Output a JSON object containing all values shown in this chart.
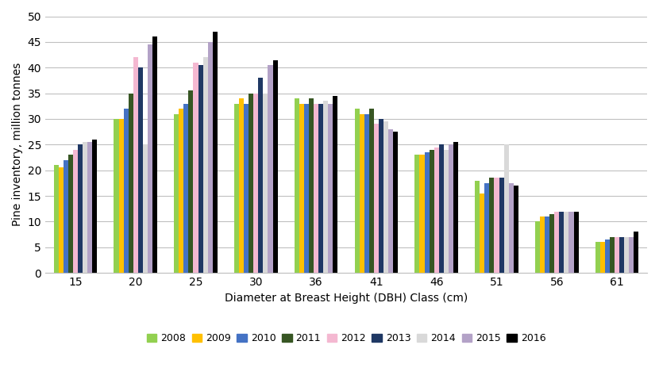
{
  "categories": [
    15,
    20,
    25,
    30,
    36,
    41,
    46,
    51,
    56,
    61
  ],
  "years": [
    "2008",
    "2009",
    "2010",
    "2011",
    "2012",
    "2013",
    "2014",
    "2015",
    "2016"
  ],
  "colors": [
    "#92d050",
    "#ffc000",
    "#4472c4",
    "#375623",
    "#f4b8d1",
    "#1f3864",
    "#d9d9d9",
    "#b3a2c7",
    "#000000"
  ],
  "values": {
    "2008": [
      21,
      30,
      31,
      33,
      34,
      32,
      23,
      18,
      10,
      6
    ],
    "2009": [
      20.5,
      30,
      32,
      34,
      33,
      31,
      23,
      15.5,
      11,
      6
    ],
    "2010": [
      22,
      32,
      33,
      33,
      33,
      31,
      23.5,
      17.5,
      11,
      6.5
    ],
    "2011": [
      23,
      35,
      35.5,
      35,
      34,
      32,
      24,
      18.5,
      11.5,
      7
    ],
    "2012": [
      24,
      42,
      41,
      35,
      33,
      29,
      24.5,
      18.5,
      12,
      7
    ],
    "2013": [
      25,
      40,
      40.5,
      38,
      33,
      30,
      25,
      18.5,
      12,
      7
    ],
    "2014": [
      25.5,
      25,
      42,
      35,
      33.5,
      29.5,
      24,
      25,
      12,
      7
    ],
    "2015": [
      25.5,
      44.5,
      45,
      40.5,
      33,
      28,
      25,
      17.5,
      12,
      7
    ],
    "2016": [
      26,
      46,
      47,
      41.5,
      34.5,
      27.5,
      25.5,
      17,
      12,
      8
    ]
  },
  "ylabel": "Pine inventory, million tonnes",
  "xlabel": "Diameter at Breast Height (DBH) Class (cm)",
  "ylim": [
    0,
    50
  ],
  "yticks": [
    0,
    5,
    10,
    15,
    20,
    25,
    30,
    35,
    40,
    45,
    50
  ],
  "figsize": [
    8.3,
    4.88
  ],
  "dpi": 100
}
